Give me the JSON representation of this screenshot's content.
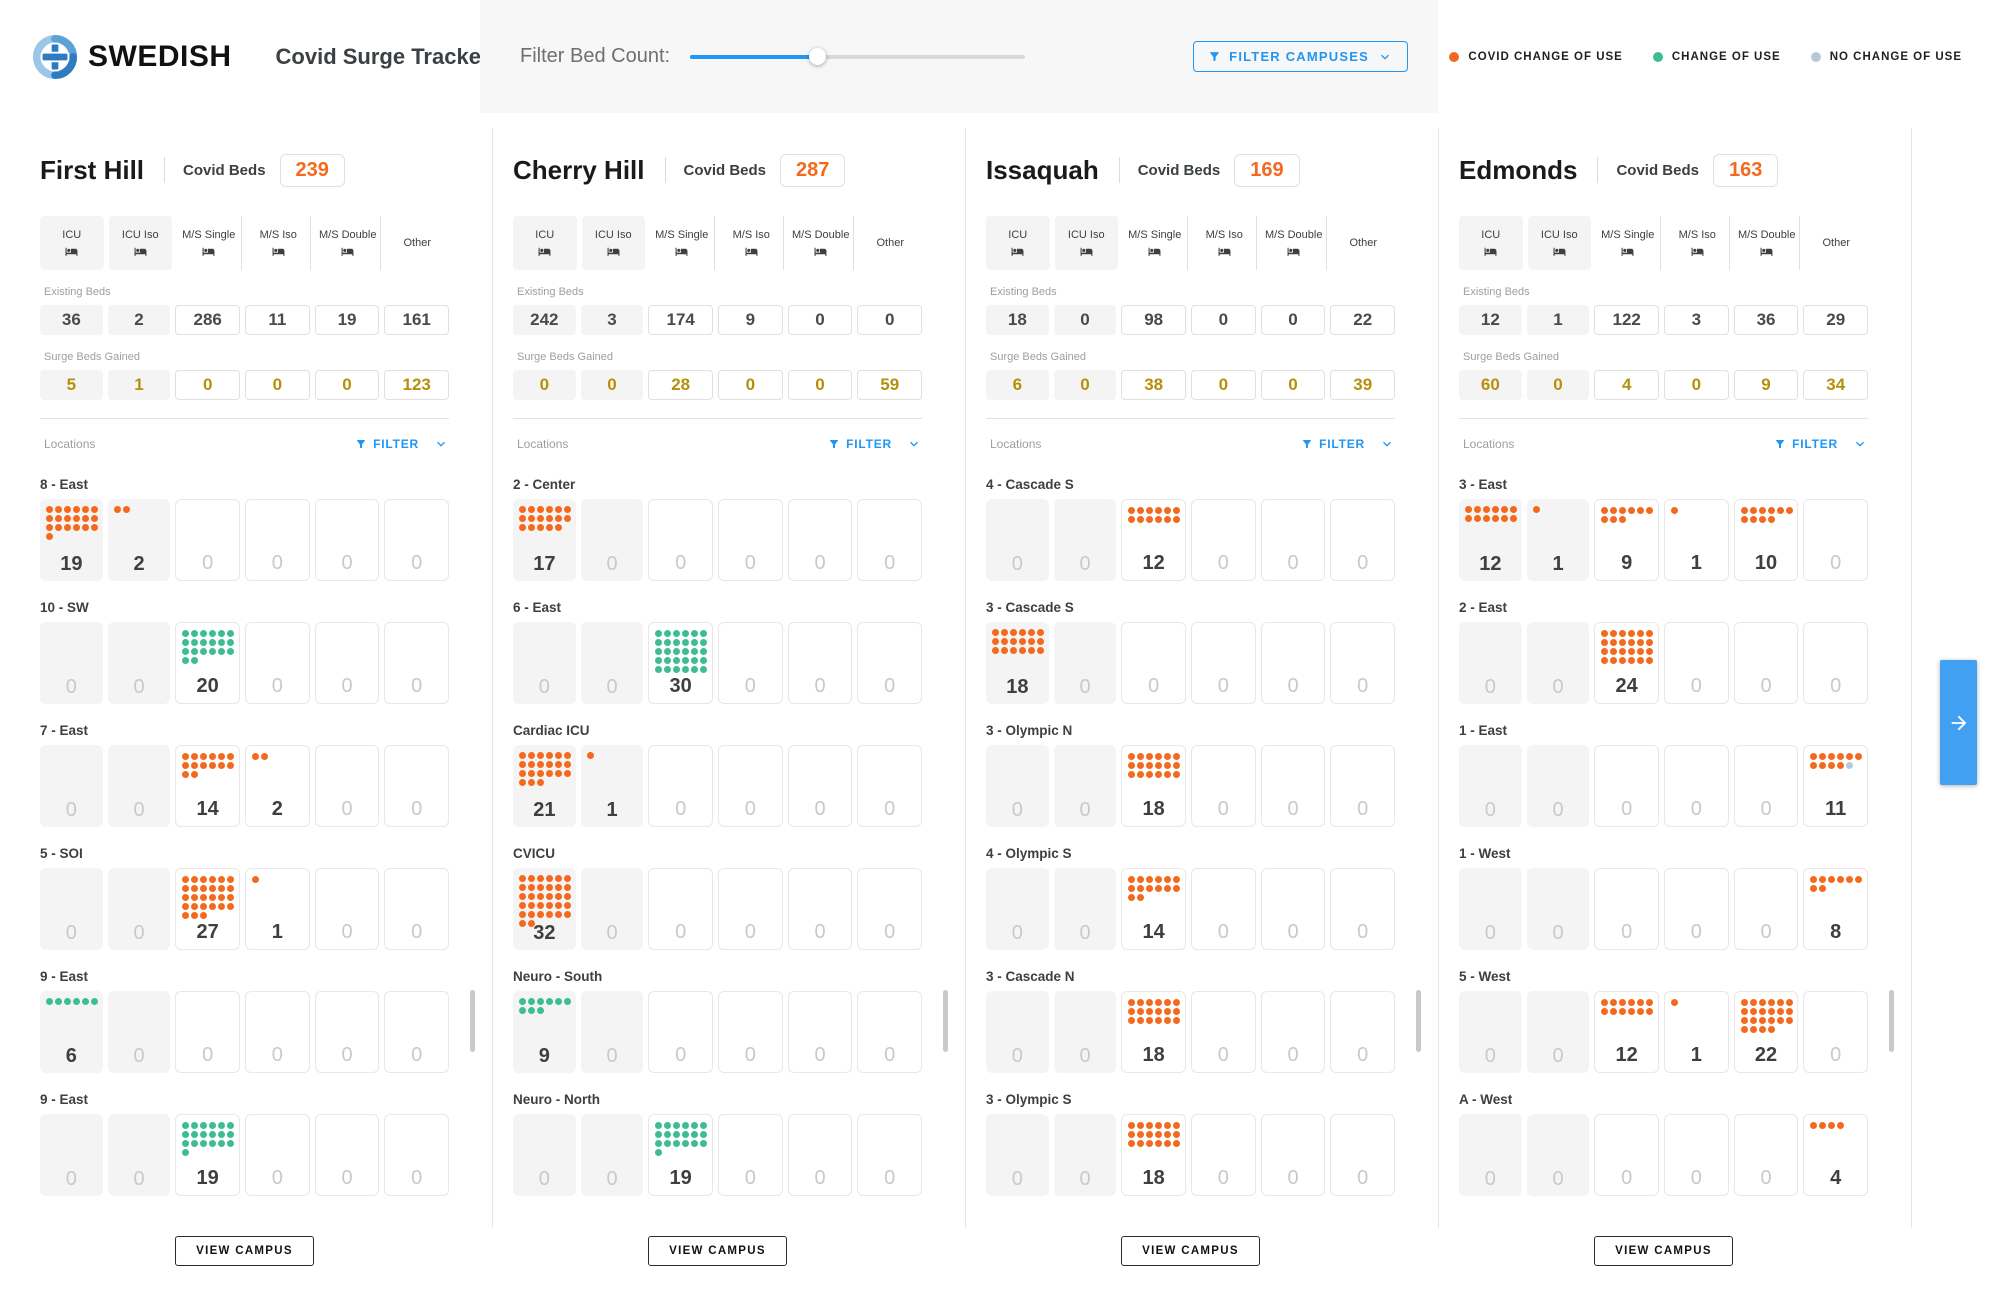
{
  "brand": {
    "name": "SWEDISH",
    "app_title": "Covid Surge Tracker"
  },
  "toolbar": {
    "filter_bed_count_label": "Filter Bed Count:",
    "slider_value_pct": 38,
    "filter_campuses_label": "FILTER CAMPUSES"
  },
  "legend": [
    {
      "id": "covid",
      "label": "COVID CHANGE OF USE",
      "color": "#F4691E"
    },
    {
      "id": "change",
      "label": "CHANGE OF USE",
      "color": "#3DBD94"
    },
    {
      "id": "nochange",
      "label": "NO CHANGE OF USE",
      "color": "#B7C9D8"
    }
  ],
  "dot_colors": {
    "covid": "#F4691E",
    "change": "#3DBD94",
    "nochange": "#B7C9D8"
  },
  "section_labels": {
    "covid_beds": "Covid Beds",
    "existing_beds": "Existing Beds",
    "surge_beds_gained": "Surge Beds Gained",
    "locations": "Locations",
    "filter": "FILTER",
    "view_campus": "VIEW CAMPUS"
  },
  "bed_types": [
    {
      "label": "ICU",
      "has_icon": true
    },
    {
      "label": "ICU Iso",
      "has_icon": true
    },
    {
      "label": "M/S Single",
      "has_icon": true
    },
    {
      "label": "M/S Iso",
      "has_icon": true
    },
    {
      "label": "M/S Double",
      "has_icon": true
    },
    {
      "label": "Other",
      "has_icon": false
    }
  ],
  "campuses": [
    {
      "name": "First Hill",
      "covid_beds": 239,
      "existing": [
        36,
        2,
        286,
        11,
        19,
        161
      ],
      "surge": [
        5,
        1,
        0,
        0,
        0,
        123
      ],
      "locations": [
        {
          "name": "8 - East",
          "cells": [
            {
              "count": 19,
              "dots": [
                [
                  "covid",
                  19
                ]
              ]
            },
            {
              "count": 2,
              "dots": [
                [
                  "covid",
                  2
                ]
              ]
            },
            {
              "count": 0,
              "dots": []
            },
            {
              "count": 0,
              "dots": []
            },
            {
              "count": 0,
              "dots": []
            },
            {
              "count": 0,
              "dots": []
            }
          ]
        },
        {
          "name": "10 - SW",
          "cells": [
            {
              "count": 0,
              "dots": []
            },
            {
              "count": 0,
              "dots": []
            },
            {
              "count": 20,
              "dots": [
                [
                  "change",
                  20
                ]
              ]
            },
            {
              "count": 0,
              "dots": []
            },
            {
              "count": 0,
              "dots": []
            },
            {
              "count": 0,
              "dots": []
            }
          ]
        },
        {
          "name": "7 - East",
          "cells": [
            {
              "count": 0,
              "dots": []
            },
            {
              "count": 0,
              "dots": []
            },
            {
              "count": 14,
              "dots": [
                [
                  "covid",
                  14
                ]
              ]
            },
            {
              "count": 2,
              "dots": [
                [
                  "covid",
                  2
                ]
              ]
            },
            {
              "count": 0,
              "dots": []
            },
            {
              "count": 0,
              "dots": []
            }
          ]
        },
        {
          "name": "5 - SOI",
          "cells": [
            {
              "count": 0,
              "dots": []
            },
            {
              "count": 0,
              "dots": []
            },
            {
              "count": 27,
              "dots": [
                [
                  "covid",
                  27
                ]
              ]
            },
            {
              "count": 1,
              "dots": [
                [
                  "covid",
                  1
                ]
              ]
            },
            {
              "count": 0,
              "dots": []
            },
            {
              "count": 0,
              "dots": []
            }
          ]
        },
        {
          "name": "9 - East",
          "cells": [
            {
              "count": 6,
              "dots": [
                [
                  "change",
                  6
                ]
              ]
            },
            {
              "count": 0,
              "dots": []
            },
            {
              "count": 0,
              "dots": []
            },
            {
              "count": 0,
              "dots": []
            },
            {
              "count": 0,
              "dots": []
            },
            {
              "count": 0,
              "dots": []
            }
          ]
        },
        {
          "name": "9 - East",
          "cells": [
            {
              "count": 0,
              "dots": []
            },
            {
              "count": 0,
              "dots": []
            },
            {
              "count": 19,
              "dots": [
                [
                  "change",
                  19
                ]
              ]
            },
            {
              "count": 0,
              "dots": []
            },
            {
              "count": 0,
              "dots": []
            },
            {
              "count": 0,
              "dots": []
            }
          ]
        }
      ]
    },
    {
      "name": "Cherry Hill",
      "covid_beds": 287,
      "existing": [
        242,
        3,
        174,
        9,
        0,
        0
      ],
      "surge": [
        0,
        0,
        28,
        0,
        0,
        59
      ],
      "locations": [
        {
          "name": "2 - Center",
          "cells": [
            {
              "count": 17,
              "dots": [
                [
                  "covid",
                  17
                ]
              ]
            },
            {
              "count": 0,
              "dots": []
            },
            {
              "count": 0,
              "dots": []
            },
            {
              "count": 0,
              "dots": []
            },
            {
              "count": 0,
              "dots": []
            },
            {
              "count": 0,
              "dots": []
            }
          ]
        },
        {
          "name": "6 - East",
          "cells": [
            {
              "count": 0,
              "dots": []
            },
            {
              "count": 0,
              "dots": []
            },
            {
              "count": 30,
              "dots": [
                [
                  "change",
                  30
                ]
              ]
            },
            {
              "count": 0,
              "dots": []
            },
            {
              "count": 0,
              "dots": []
            },
            {
              "count": 0,
              "dots": []
            }
          ]
        },
        {
          "name": "Cardiac ICU",
          "cells": [
            {
              "count": 21,
              "dots": [
                [
                  "covid",
                  21
                ]
              ]
            },
            {
              "count": 1,
              "dots": [
                [
                  "covid",
                  1
                ]
              ]
            },
            {
              "count": 0,
              "dots": []
            },
            {
              "count": 0,
              "dots": []
            },
            {
              "count": 0,
              "dots": []
            },
            {
              "count": 0,
              "dots": []
            }
          ]
        },
        {
          "name": "CVICU",
          "cells": [
            {
              "count": 32,
              "dots": [
                [
                  "covid",
                  32
                ]
              ]
            },
            {
              "count": 0,
              "dots": []
            },
            {
              "count": 0,
              "dots": []
            },
            {
              "count": 0,
              "dots": []
            },
            {
              "count": 0,
              "dots": []
            },
            {
              "count": 0,
              "dots": []
            }
          ]
        },
        {
          "name": "Neuro - South",
          "cells": [
            {
              "count": 9,
              "dots": [
                [
                  "change",
                  9
                ]
              ]
            },
            {
              "count": 0,
              "dots": []
            },
            {
              "count": 0,
              "dots": []
            },
            {
              "count": 0,
              "dots": []
            },
            {
              "count": 0,
              "dots": []
            },
            {
              "count": 0,
              "dots": []
            }
          ]
        },
        {
          "name": "Neuro - North",
          "cells": [
            {
              "count": 0,
              "dots": []
            },
            {
              "count": 0,
              "dots": []
            },
            {
              "count": 19,
              "dots": [
                [
                  "change",
                  19
                ]
              ]
            },
            {
              "count": 0,
              "dots": []
            },
            {
              "count": 0,
              "dots": []
            },
            {
              "count": 0,
              "dots": []
            }
          ]
        }
      ]
    },
    {
      "name": "Issaquah",
      "covid_beds": 169,
      "existing": [
        18,
        0,
        98,
        0,
        0,
        22
      ],
      "surge": [
        6,
        0,
        38,
        0,
        0,
        39
      ],
      "locations": [
        {
          "name": "4 - Cascade S",
          "cells": [
            {
              "count": 0,
              "dots": []
            },
            {
              "count": 0,
              "dots": []
            },
            {
              "count": 12,
              "dots": [
                [
                  "covid",
                  12
                ]
              ]
            },
            {
              "count": 0,
              "dots": []
            },
            {
              "count": 0,
              "dots": []
            },
            {
              "count": 0,
              "dots": []
            }
          ]
        },
        {
          "name": "3 - Cascade S",
          "cells": [
            {
              "count": 18,
              "dots": [
                [
                  "covid",
                  18
                ]
              ]
            },
            {
              "count": 0,
              "dots": []
            },
            {
              "count": 0,
              "dots": []
            },
            {
              "count": 0,
              "dots": []
            },
            {
              "count": 0,
              "dots": []
            },
            {
              "count": 0,
              "dots": []
            }
          ]
        },
        {
          "name": "3 - Olympic N",
          "cells": [
            {
              "count": 0,
              "dots": []
            },
            {
              "count": 0,
              "dots": []
            },
            {
              "count": 18,
              "dots": [
                [
                  "covid",
                  18
                ]
              ]
            },
            {
              "count": 0,
              "dots": []
            },
            {
              "count": 0,
              "dots": []
            },
            {
              "count": 0,
              "dots": []
            }
          ]
        },
        {
          "name": "4 - Olympic S",
          "cells": [
            {
              "count": 0,
              "dots": []
            },
            {
              "count": 0,
              "dots": []
            },
            {
              "count": 14,
              "dots": [
                [
                  "covid",
                  14
                ]
              ]
            },
            {
              "count": 0,
              "dots": []
            },
            {
              "count": 0,
              "dots": []
            },
            {
              "count": 0,
              "dots": []
            }
          ]
        },
        {
          "name": "3 - Cascade N",
          "cells": [
            {
              "count": 0,
              "dots": []
            },
            {
              "count": 0,
              "dots": []
            },
            {
              "count": 18,
              "dots": [
                [
                  "covid",
                  18
                ]
              ]
            },
            {
              "count": 0,
              "dots": []
            },
            {
              "count": 0,
              "dots": []
            },
            {
              "count": 0,
              "dots": []
            }
          ]
        },
        {
          "name": "3 - Olympic S",
          "cells": [
            {
              "count": 0,
              "dots": []
            },
            {
              "count": 0,
              "dots": []
            },
            {
              "count": 18,
              "dots": [
                [
                  "covid",
                  18
                ]
              ]
            },
            {
              "count": 0,
              "dots": []
            },
            {
              "count": 0,
              "dots": []
            },
            {
              "count": 0,
              "dots": []
            }
          ]
        }
      ]
    },
    {
      "name": "Edmonds",
      "covid_beds": 163,
      "existing": [
        12,
        1,
        122,
        3,
        36,
        29
      ],
      "surge": [
        60,
        0,
        4,
        0,
        9,
        34
      ],
      "locations": [
        {
          "name": "3 - East",
          "cells": [
            {
              "count": 12,
              "dots": [
                [
                  "covid",
                  12
                ]
              ]
            },
            {
              "count": 1,
              "dots": [
                [
                  "covid",
                  1
                ]
              ]
            },
            {
              "count": 9,
              "dots": [
                [
                  "covid",
                  9
                ]
              ]
            },
            {
              "count": 1,
              "dots": [
                [
                  "covid",
                  1
                ]
              ]
            },
            {
              "count": 10,
              "dots": [
                [
                  "covid",
                  10
                ]
              ]
            },
            {
              "count": 0,
              "dots": []
            }
          ]
        },
        {
          "name": "2 - East",
          "cells": [
            {
              "count": 0,
              "dots": []
            },
            {
              "count": 0,
              "dots": []
            },
            {
              "count": 24,
              "dots": [
                [
                  "covid",
                  24
                ]
              ]
            },
            {
              "count": 0,
              "dots": []
            },
            {
              "count": 0,
              "dots": []
            },
            {
              "count": 0,
              "dots": []
            }
          ]
        },
        {
          "name": "1 - East",
          "cells": [
            {
              "count": 0,
              "dots": []
            },
            {
              "count": 0,
              "dots": []
            },
            {
              "count": 0,
              "dots": []
            },
            {
              "count": 0,
              "dots": []
            },
            {
              "count": 0,
              "dots": []
            },
            {
              "count": 11,
              "dots": [
                [
                  "covid",
                  10
                ],
                [
                  "nochange",
                  1
                ]
              ]
            }
          ]
        },
        {
          "name": "1 - West",
          "cells": [
            {
              "count": 0,
              "dots": []
            },
            {
              "count": 0,
              "dots": []
            },
            {
              "count": 0,
              "dots": []
            },
            {
              "count": 0,
              "dots": []
            },
            {
              "count": 0,
              "dots": []
            },
            {
              "count": 8,
              "dots": [
                [
                  "covid",
                  8
                ]
              ]
            }
          ]
        },
        {
          "name": "5 - West",
          "cells": [
            {
              "count": 0,
              "dots": []
            },
            {
              "count": 0,
              "dots": []
            },
            {
              "count": 12,
              "dots": [
                [
                  "covid",
                  12
                ]
              ]
            },
            {
              "count": 1,
              "dots": [
                [
                  "covid",
                  1
                ]
              ]
            },
            {
              "count": 22,
              "dots": [
                [
                  "covid",
                  22
                ]
              ]
            },
            {
              "count": 0,
              "dots": []
            }
          ]
        },
        {
          "name": "A - West",
          "cells": [
            {
              "count": 0,
              "dots": []
            },
            {
              "count": 0,
              "dots": []
            },
            {
              "count": 0,
              "dots": []
            },
            {
              "count": 0,
              "dots": []
            },
            {
              "count": 0,
              "dots": []
            },
            {
              "count": 4,
              "dots": [
                [
                  "covid",
                  4
                ]
              ]
            }
          ]
        }
      ]
    }
  ]
}
